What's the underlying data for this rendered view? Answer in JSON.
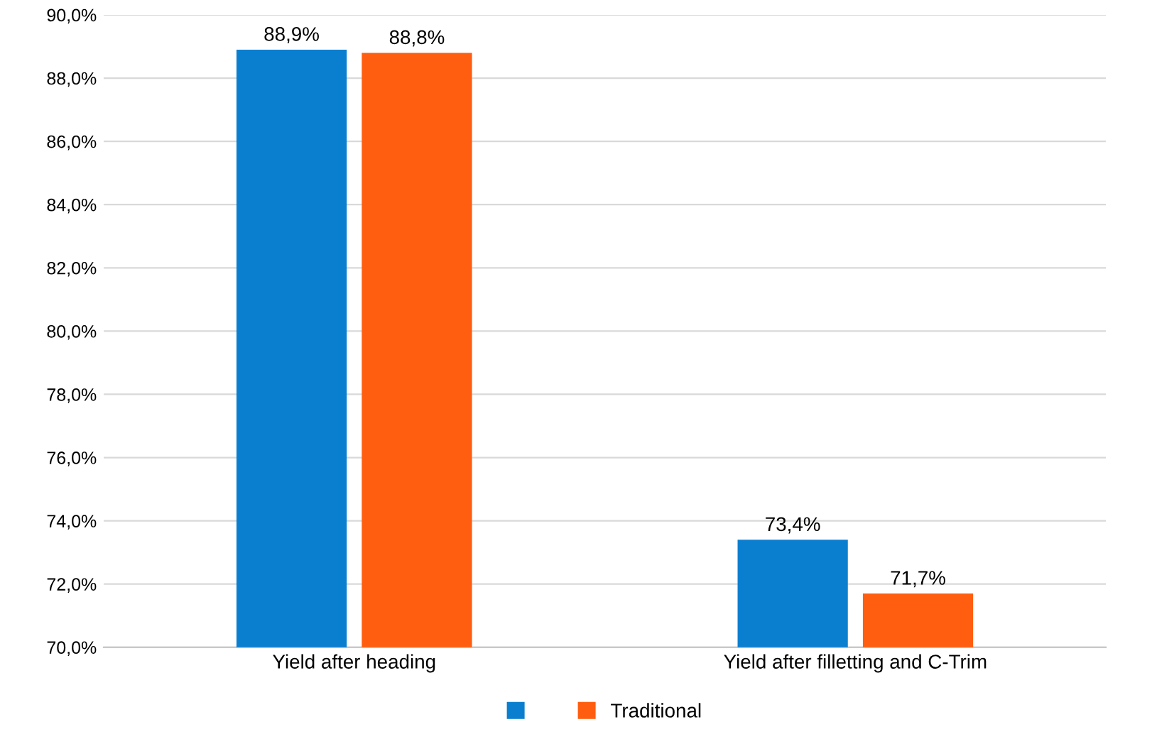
{
  "chart_data": {
    "type": "bar",
    "categories": [
      "Yield after heading",
      "Yield after filletting and C-Trim"
    ],
    "series": [
      {
        "color": "#0b7fcf",
        "values": [
          88.9,
          73.4
        ],
        "value_labels": [
          "88,9%",
          "73,4%"
        ]
      },
      {
        "name": "Traditional",
        "color": "#ff5e10",
        "values": [
          88.8,
          71.7
        ],
        "value_labels": [
          "88,8%",
          "71,7%"
        ]
      }
    ],
    "ylim": [
      70,
      90
    ],
    "yticks": [
      {
        "value": 70,
        "label": "70,0%"
      },
      {
        "value": 72,
        "label": "72,0%"
      },
      {
        "value": 74,
        "label": "74,0%"
      },
      {
        "value": 76,
        "label": "76,0%"
      },
      {
        "value": 78,
        "label": "78,0%"
      },
      {
        "value": 80,
        "label": "80,0%"
      },
      {
        "value": 82,
        "label": "82,0%"
      },
      {
        "value": 84,
        "label": "84,0%"
      },
      {
        "value": 86,
        "label": "86,0%"
      },
      {
        "value": 88,
        "label": "88,0%"
      },
      {
        "value": 90,
        "label": "90,0%"
      }
    ],
    "grid": "y",
    "legend": "bottom"
  }
}
